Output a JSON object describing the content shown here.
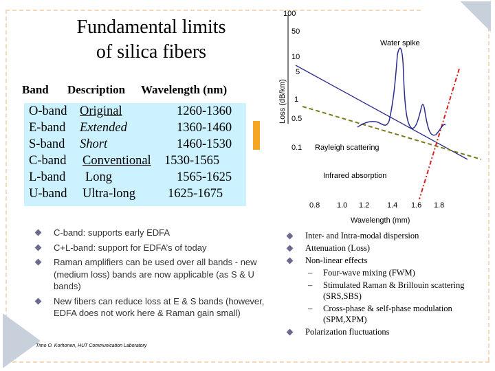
{
  "title_lines": [
    "Fundamental limits",
    "of silica fibers"
  ],
  "table_header": {
    "band": "Band",
    "description": "Description",
    "wavelength": "Wavelength (nm)"
  },
  "bands": [
    {
      "band": "O-band",
      "description": "Original",
      "range": "1260-1360"
    },
    {
      "band": "E-band",
      "description": "Extended",
      "range": "1360-1460"
    },
    {
      "band": "S-band",
      "description": "Short",
      "range": "1460-1530"
    },
    {
      "band": "C-band",
      "description": "Conventional",
      "range": "1530-1565"
    },
    {
      "band": "L-band",
      "description": "Long",
      "range": "1565-1625"
    },
    {
      "band": "U-band",
      "description": "Ultra-long",
      "range": "1625-1675"
    }
  ],
  "chart": {
    "y_ticks": [
      "100",
      "50",
      "10",
      "5",
      "1",
      "0.5",
      "0.1"
    ],
    "ylabel": "Loss (dB/km)",
    "x_ticks": [
      "0.8",
      "1.0",
      "1.2",
      "1.4",
      "1.6",
      "1.8"
    ],
    "xlabel": "Wavelength (mm)",
    "annotations": {
      "water": "Water spike",
      "rayleigh": "Rayleigh scattering",
      "infrared": "Infrared absorption"
    }
  },
  "left_bullets": [
    "C-band: supports early EDFA",
    "C+L-band: support for EDFA’s of today",
    "Raman amplifiers can be used over all bands - new (medium loss) bands are now applicable (as S & U bands)",
    "New fibers can reduce loss at E & S bands (however, EDFA does not work here & Raman gain small)"
  ],
  "right_bullets": [
    {
      "text": "Inter- and Intra-modal dispersion",
      "level": 1
    },
    {
      "text": "Attenuation (Loss)",
      "level": 1
    },
    {
      "text": "Non-linear effects",
      "level": 1
    },
    {
      "text": "Four-wave mixing (FWM)",
      "level": 2
    },
    {
      "text": "Stimulated Raman & Brillouin scattering (SRS,SBS)",
      "level": 2
    },
    {
      "text": "Cross-phase & self-phase modulation (SPM,XPM)",
      "level": 2
    },
    {
      "text": "Polarization fluctuations",
      "level": 1
    }
  ],
  "footer": "Timo O. Korhonen, HUT Communication Laboratory",
  "colors": {
    "table_bg": "#ccf2ff",
    "accent": "#f5a623",
    "rayleigh_line": "#7a7a1a",
    "ir_line": "#d62020",
    "curve": "#2b2b8c",
    "frame": "#f3d9b8"
  }
}
